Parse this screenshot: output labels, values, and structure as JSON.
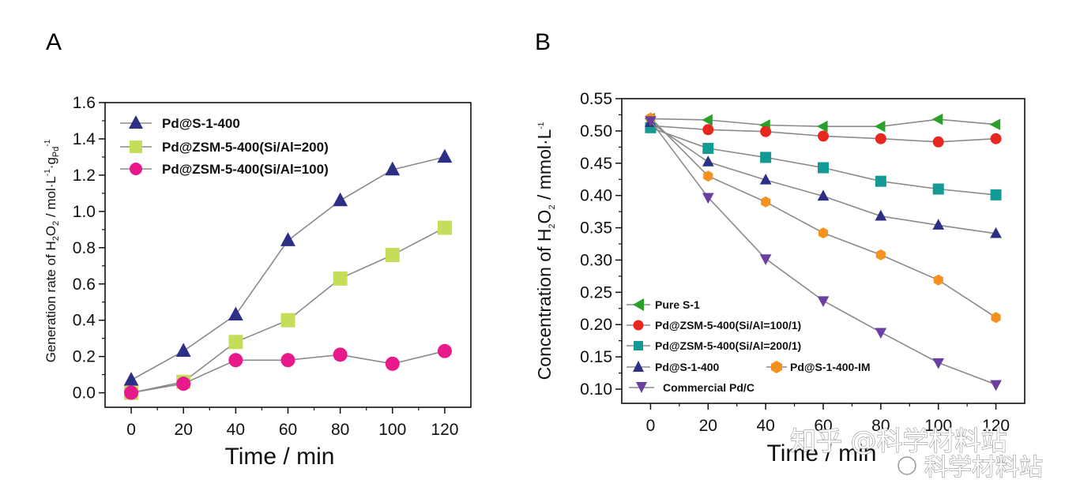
{
  "panels": {
    "A": {
      "letter": "A"
    },
    "B": {
      "letter": "B"
    }
  },
  "watermark": {
    "line1": "知乎 @科学材料站",
    "line2": "科学材料站"
  },
  "chart_data": [
    {
      "type": "line",
      "panel": "A",
      "xlabel": "Time / min",
      "ylabel": "Generation rate of H2O2 / mol·L-1·gPd-1",
      "xlim": [
        -10,
        130
      ],
      "ylim": [
        -0.08,
        1.6
      ],
      "xticks": [
        0,
        20,
        40,
        60,
        80,
        100,
        120
      ],
      "yticks": [
        0.0,
        0.2,
        0.4,
        0.6,
        0.8,
        1.0,
        1.2,
        1.4,
        1.6
      ],
      "legend_position": "top-left",
      "x": [
        0,
        20,
        40,
        60,
        80,
        100,
        120
      ],
      "series": [
        {
          "name": "Pd@S-1-400",
          "marker": "triangle-up",
          "color": "#2b2f86",
          "values": [
            0.07,
            0.23,
            0.43,
            0.84,
            1.06,
            1.23,
            1.3
          ]
        },
        {
          "name": "Pd@ZSM-5-400(Si/Al=200)",
          "marker": "square",
          "color": "#c5de5a",
          "values": [
            0.0,
            0.06,
            0.28,
            0.4,
            0.63,
            0.76,
            0.91
          ]
        },
        {
          "name": "Pd@ZSM-5-400(Si/Al=100)",
          "marker": "circle",
          "color": "#e8198a",
          "values": [
            0.0,
            0.05,
            0.18,
            0.18,
            0.21,
            0.16,
            0.23
          ]
        }
      ]
    },
    {
      "type": "line",
      "panel": "B",
      "xlabel": "Time / min",
      "ylabel": "Concentration of H2O2 / mmol·L-1",
      "xlim": [
        -10,
        130
      ],
      "ylim": [
        0.078,
        0.55
      ],
      "xticks": [
        0,
        20,
        40,
        60,
        80,
        100,
        120
      ],
      "yticks": [
        0.1,
        0.15,
        0.2,
        0.25,
        0.3,
        0.35,
        0.4,
        0.45,
        0.5,
        0.55
      ],
      "legend_position": "bottom-left",
      "x": [
        0,
        20,
        40,
        60,
        80,
        100,
        120
      ],
      "series": [
        {
          "name": "Pure S-1",
          "marker": "triangle-left",
          "color": "#2aa02a",
          "values": [
            0.519,
            0.517,
            0.509,
            0.507,
            0.507,
            0.518,
            0.51
          ]
        },
        {
          "name": "Pd@ZSM-5-400(Si/Al=100/1)",
          "marker": "circle",
          "color": "#e8281e",
          "values": [
            0.508,
            0.502,
            0.499,
            0.492,
            0.488,
            0.483,
            0.488
          ]
        },
        {
          "name": "Pd@ZSM-5-400(Si/Al=200/1)",
          "marker": "square",
          "color": "#139a94",
          "values": [
            0.505,
            0.473,
            0.459,
            0.443,
            0.422,
            0.41,
            0.401
          ]
        },
        {
          "name": "Pd@S-1-400",
          "marker": "triangle-up",
          "color": "#2b2f86",
          "values": [
            0.513,
            0.452,
            0.424,
            0.399,
            0.368,
            0.354,
            0.341
          ]
        },
        {
          "name": "Pd@S-1-400-IM",
          "marker": "hexagon",
          "color": "#f5911e",
          "values": [
            0.52,
            0.43,
            0.39,
            0.342,
            0.308,
            0.269,
            0.211
          ]
        },
        {
          "name": "Commercial Pd/C",
          "marker": "triangle-down",
          "color": "#6b3fa0",
          "values": [
            0.516,
            0.397,
            0.302,
            0.237,
            0.188,
            0.141,
            0.107
          ]
        }
      ]
    }
  ]
}
